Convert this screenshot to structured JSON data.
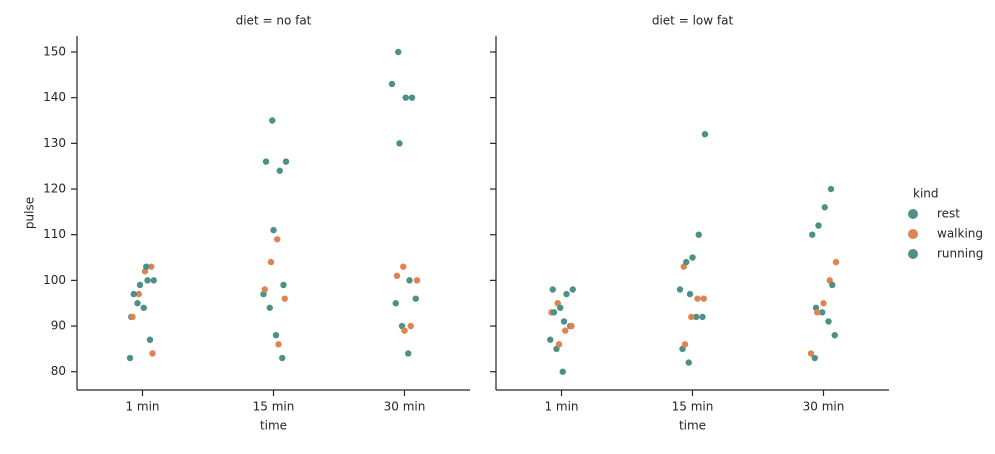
{
  "chart_data": {
    "type": "strip",
    "ylabel": "pulse",
    "xlabel": "time",
    "categories": [
      "1 min",
      "15 min",
      "30 min"
    ],
    "ylim": [
      76,
      153.5
    ],
    "yticks": [
      80,
      90,
      100,
      110,
      120,
      130,
      140,
      150
    ],
    "legend_title": "kind",
    "legend": "right",
    "series": [
      {
        "name": "rest",
        "color": "#4c9087"
      },
      {
        "name": "walking",
        "color": "#dd8452"
      },
      {
        "name": "running",
        "color": "#4c9087"
      }
    ],
    "facets": [
      {
        "title": "diet = no fat",
        "values": [
          [
            [
              83,
              87,
              94,
              95,
              92
            ],
            [
              83,
              88,
              94,
              97,
              99
            ],
            [
              84,
              90,
              95,
              96,
              100
            ]
          ],
          [
            [
              103,
              102,
              97,
              92,
              84
            ],
            [
              109,
              104,
              98,
              96,
              86
            ],
            [
              103,
              101,
              100,
              90,
              89
            ]
          ],
          [
            [
              103,
              99,
              97,
              100,
              100
            ],
            [
              135,
              126,
              126,
              124,
              111
            ],
            [
              150,
              143,
              140,
              140,
              130
            ]
          ]
        ]
      },
      {
        "title": "diet = low fat",
        "values": [
          [
            [
              80,
              85,
              87,
              90,
              91
            ],
            [
              82,
              85,
              92,
              92,
              97
            ],
            [
              83,
              88,
              91,
              93,
              94
            ]
          ],
          [
            [
              95,
              93,
              90,
              89,
              86
            ],
            [
              103,
              96,
              96,
              92,
              86
            ],
            [
              104,
              100,
              95,
              93,
              84
            ]
          ],
          [
            [
              98,
              98,
              97,
              94,
              93
            ],
            [
              132,
              110,
              105,
              104,
              98
            ],
            [
              120,
              116,
              112,
              110,
              99
            ]
          ]
        ]
      }
    ]
  }
}
